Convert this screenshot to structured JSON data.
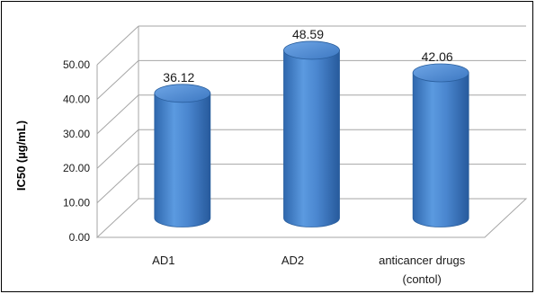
{
  "chart_data": {
    "type": "bar",
    "style": "3d-cylinder",
    "categories": [
      "AD1",
      "AD2",
      "anticancer drugs (contol)"
    ],
    "category_lines": [
      [
        "AD1"
      ],
      [
        "AD2"
      ],
      [
        "anticancer drugs",
        "(contol)"
      ]
    ],
    "values": [
      36.12,
      48.59,
      42.06
    ],
    "data_labels": [
      "36.12",
      "48.59",
      "42.06"
    ],
    "title": "",
    "xlabel": "",
    "ylabel": "IC50 (µg/mL)",
    "ylim": [
      0,
      50
    ],
    "yticks": [
      "0.00",
      "10.00",
      "20.00",
      "30.00",
      "40.00",
      "50.00"
    ],
    "grid": true,
    "legend": "none",
    "bar_color": "#4a86cf"
  }
}
